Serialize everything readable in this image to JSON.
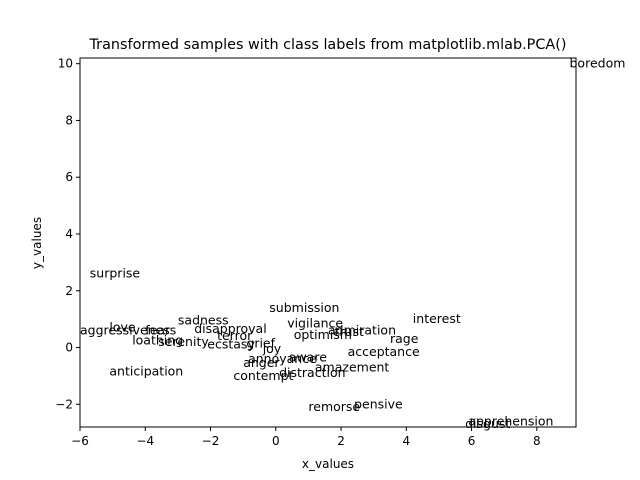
{
  "chart_data": {
    "type": "scatter",
    "title": "Transformed samples with class labels from matplotlib.mlab.PCA()",
    "xlabel": "x_values",
    "ylabel": "y_values",
    "xlim": [
      -6,
      9.2
    ],
    "ylim": [
      -2.8,
      10.2
    ],
    "grid": false,
    "legend": "none",
    "x_ticks": [
      {
        "value": -6,
        "label": "−6"
      },
      {
        "value": -4,
        "label": "−4"
      },
      {
        "value": -2,
        "label": "−2"
      },
      {
        "value": 0,
        "label": "0"
      },
      {
        "value": 2,
        "label": "2"
      },
      {
        "value": 4,
        "label": "4"
      },
      {
        "value": 6,
        "label": "6"
      },
      {
        "value": 8,
        "label": "8"
      }
    ],
    "y_ticks": [
      {
        "value": -2,
        "label": "−2"
      },
      {
        "value": 0,
        "label": "0"
      },
      {
        "value": 2,
        "label": "2"
      },
      {
        "value": 4,
        "label": "4"
      },
      {
        "value": 6,
        "label": "6"
      },
      {
        "value": 8,
        "label": "8"
      },
      {
        "value": 10,
        "label": "10"
      }
    ],
    "points": [
      {
        "label": "boredom",
        "x": 9.0,
        "y": 10.0
      },
      {
        "label": "surprise",
        "x": -5.7,
        "y": 2.6
      },
      {
        "label": "submission",
        "x": -0.2,
        "y": 1.4
      },
      {
        "label": "interest",
        "x": 4.2,
        "y": 1.0
      },
      {
        "label": "sadness",
        "x": -3.0,
        "y": 0.95
      },
      {
        "label": "vigilance",
        "x": 0.35,
        "y": 0.85
      },
      {
        "label": "disapproval",
        "x": -2.5,
        "y": 0.65
      },
      {
        "label": "admiration",
        "x": 1.6,
        "y": 0.6
      },
      {
        "label": "love",
        "x": -5.1,
        "y": 0.7
      },
      {
        "label": "aggressiveness",
        "x": -6.0,
        "y": 0.6
      },
      {
        "label": "fear",
        "x": -4.0,
        "y": 0.6
      },
      {
        "label": "trust",
        "x": 1.8,
        "y": 0.55
      },
      {
        "label": "optimism",
        "x": 0.55,
        "y": 0.45
      },
      {
        "label": "terror",
        "x": -1.8,
        "y": 0.4
      },
      {
        "label": "rage",
        "x": 3.5,
        "y": 0.3
      },
      {
        "label": "loathing",
        "x": -4.4,
        "y": 0.25
      },
      {
        "label": "serenity",
        "x": -3.6,
        "y": 0.2
      },
      {
        "label": "ecstasy",
        "x": -2.1,
        "y": 0.1
      },
      {
        "label": "grief",
        "x": -0.9,
        "y": 0.15
      },
      {
        "label": "joy",
        "x": -0.4,
        "y": -0.05
      },
      {
        "label": "acceptance",
        "x": 2.2,
        "y": -0.15
      },
      {
        "label": "annoyance",
        "x": -0.85,
        "y": -0.4
      },
      {
        "label": "aware",
        "x": 0.4,
        "y": -0.35
      },
      {
        "label": "anger",
        "x": -1.0,
        "y": -0.55
      },
      {
        "label": "amazement",
        "x": 1.2,
        "y": -0.7
      },
      {
        "label": "anticipation",
        "x": -5.1,
        "y": -0.85
      },
      {
        "label": "distraction",
        "x": 0.1,
        "y": -0.9
      },
      {
        "label": "contempt",
        "x": -1.3,
        "y": -1.0
      },
      {
        "label": "pensive",
        "x": 2.4,
        "y": -2.0
      },
      {
        "label": "remorse",
        "x": 1.0,
        "y": -2.1
      },
      {
        "label": "apprehension",
        "x": 5.9,
        "y": -2.6
      },
      {
        "label": "disgust",
        "x": 5.8,
        "y": -2.7
      }
    ]
  }
}
